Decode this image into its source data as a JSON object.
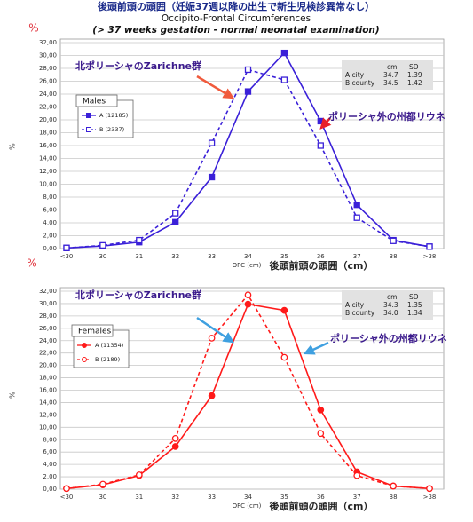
{
  "header": {
    "title_ja": "後頭前頭の頭囲（妊娠37週以降の出生で新生児検診異常なし）",
    "title_en": "Occipito-Frontal Circumferences",
    "subtitle": "(> 37 weeks gestation - normal neonatal examination)"
  },
  "chart_data": [
    {
      "type": "line",
      "y_label": "%",
      "x_label": "OFC (cm)",
      "x_label_ja": "後頭前頭の頭囲（cm）",
      "categories": [
        "<30",
        "30",
        "31",
        "32",
        "33",
        "34",
        "35",
        "36",
        "37",
        "38",
        ">38"
      ],
      "series": [
        {
          "name": "A (12185)",
          "color": "#3a20d8",
          "dash": false,
          "marker": "square",
          "filled": true,
          "values": [
            0.1,
            0.4,
            1.0,
            4.1,
            11.1,
            24.4,
            30.4,
            19.8,
            6.8,
            1.3,
            0.3
          ]
        },
        {
          "name": "B (2337)",
          "color": "#3a20d8",
          "dash": true,
          "marker": "square",
          "filled": false,
          "values": [
            0.1,
            0.5,
            1.3,
            5.5,
            16.4,
            27.8,
            26.2,
            16.0,
            4.8,
            1.2,
            0.3
          ]
        }
      ],
      "legend_title": "Males",
      "ylim": [
        0,
        32
      ],
      "yticks": [
        {
          "value": 0,
          "label": "0,00"
        },
        {
          "value": 2,
          "label": "2,00"
        },
        {
          "value": 4,
          "label": "4,00"
        },
        {
          "value": 6,
          "label": "6,00"
        },
        {
          "value": 8,
          "label": "8,00"
        },
        {
          "value": 10,
          "label": "10,00"
        },
        {
          "value": 12,
          "label": "12,00"
        },
        {
          "value": 14,
          "label": "14,00"
        },
        {
          "value": 16,
          "label": "16,00"
        },
        {
          "value": 18,
          "label": "18,00"
        },
        {
          "value": 20,
          "label": "20,00"
        },
        {
          "value": 22,
          "label": "22,00"
        },
        {
          "value": 24,
          "label": "24,00"
        },
        {
          "value": 26,
          "label": "26,00"
        },
        {
          "value": 28,
          "label": "28,00"
        },
        {
          "value": 30,
          "label": "30,00"
        },
        {
          "value": 32,
          "label": "32,00"
        }
      ],
      "grid": true,
      "stats_table": {
        "header": [
          "cm",
          "SD"
        ],
        "rows": [
          [
            "A city",
            "34.7",
            "1.39"
          ],
          [
            "B county",
            "34.5",
            "1.42"
          ]
        ]
      },
      "annotations": [
        {
          "text": "北ポリーシャのZarichne群",
          "arrow_color": "#f05a3c"
        },
        {
          "text": "ポリーシャ外の州都リウネ",
          "arrow_color": "#e8202a"
        }
      ]
    },
    {
      "type": "line",
      "y_label": "%",
      "x_label": "OFC (cm)",
      "x_label_ja": "後頭前頭の頭囲（cm）",
      "categories": [
        "<30",
        "30",
        "31",
        "32",
        "33",
        "34",
        "35",
        "36",
        "37",
        "38",
        ">38"
      ],
      "series": [
        {
          "name": "A (11354)",
          "color": "#ff1a1a",
          "dash": false,
          "marker": "circle",
          "filled": true,
          "values": [
            0.1,
            0.7,
            2.2,
            6.9,
            15.1,
            29.9,
            28.9,
            12.8,
            2.8,
            0.5,
            0.1
          ]
        },
        {
          "name": "B (2189)",
          "color": "#ff1a1a",
          "dash": true,
          "marker": "circle",
          "filled": false,
          "values": [
            0.1,
            0.8,
            2.3,
            8.2,
            24.4,
            31.4,
            21.3,
            9.0,
            2.2,
            0.5,
            0.1
          ]
        }
      ],
      "legend_title": "Females",
      "ylim": [
        0,
        32
      ],
      "yticks": [
        {
          "value": 0,
          "label": "0,00"
        },
        {
          "value": 2,
          "label": "2,00"
        },
        {
          "value": 4,
          "label": "4,00"
        },
        {
          "value": 6,
          "label": "6,00"
        },
        {
          "value": 8,
          "label": "8,00"
        },
        {
          "value": 10,
          "label": "10,00"
        },
        {
          "value": 12,
          "label": "12,00"
        },
        {
          "value": 14,
          "label": "14,00"
        },
        {
          "value": 16,
          "label": "16,00"
        },
        {
          "value": 18,
          "label": "18,00"
        },
        {
          "value": 20,
          "label": "20,00"
        },
        {
          "value": 22,
          "label": "22,00"
        },
        {
          "value": 24,
          "label": "24,00"
        },
        {
          "value": 26,
          "label": "26,00"
        },
        {
          "value": 28,
          "label": "28,00"
        },
        {
          "value": 30,
          "label": "30,00"
        },
        {
          "value": 32,
          "label": "32,00"
        }
      ],
      "grid": true,
      "stats_table": {
        "header": [
          "cm",
          "SD"
        ],
        "rows": [
          [
            "A city",
            "34.3",
            "1.35"
          ],
          [
            "B county",
            "34.0",
            "1.34"
          ]
        ]
      },
      "annotations": [
        {
          "text": "北ポリーシャのZarichne群",
          "arrow_color": "#3fa0e0"
        },
        {
          "text": "ポリーシャ外の州都リウネ",
          "arrow_color": "#3fa0e0"
        }
      ]
    }
  ]
}
